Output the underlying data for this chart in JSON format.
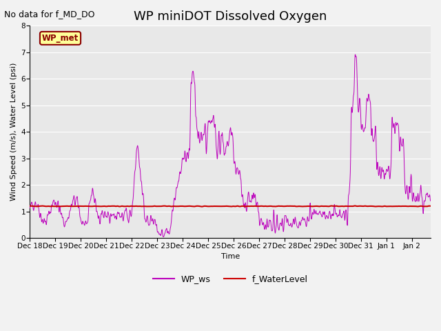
{
  "title": "WP miniDOT Dissolved Oxygen",
  "annotation_text": "No data for f_MD_DO",
  "ylabel": "Wind Speed (m/s), Water Level (psi)",
  "xlabel": "Time",
  "legend_box_label": "WP_met",
  "legend_ws": "WP_ws",
  "legend_wl": "f_WaterLevel",
  "ws_color": "#BB00BB",
  "wl_color": "#CC0000",
  "ylim": [
    0.0,
    8.0
  ],
  "yticks": [
    0.0,
    1.0,
    2.0,
    3.0,
    4.0,
    5.0,
    6.0,
    7.0,
    8.0
  ],
  "plot_bg": "#E8E8E8",
  "fig_bg": "#F2F2F2",
  "legend_box_facecolor": "#FFFF99",
  "legend_box_edgecolor": "#8B0000",
  "title_fontsize": 13,
  "annotation_fontsize": 9,
  "axis_fontsize": 8,
  "tick_fontsize": 7.5,
  "ws_linewidth": 0.7,
  "wl_linewidth": 1.5
}
